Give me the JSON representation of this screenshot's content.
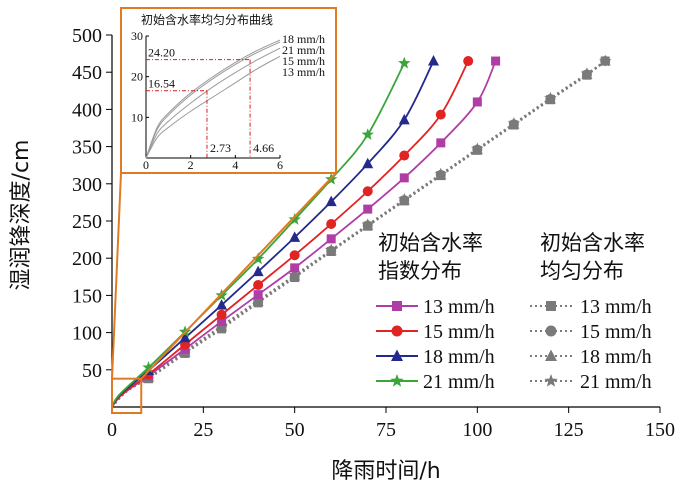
{
  "chart_data": {
    "type": "line",
    "xlabel": "降雨时间/h",
    "ylabel": "湿润锋深度/cm",
    "xlim": [
      0,
      150
    ],
    "ylim": [
      0,
      500
    ],
    "xticks": [
      0,
      25,
      50,
      75,
      100,
      125,
      150
    ],
    "yticks": [
      50,
      100,
      150,
      200,
      250,
      300,
      350,
      400,
      450,
      500
    ],
    "legend": {
      "placement": "bottom-right",
      "group_exp_line1": "初始含水率",
      "group_exp_line2": "指数分布",
      "group_uni_line1": "初始含水率",
      "group_uni_line2": "均匀分布"
    },
    "series": [
      {
        "name": "13 mm/h",
        "group": "exp",
        "color": "#b03ca6",
        "marker": "square",
        "style": "solid",
        "x": [
          2.73,
          10,
          20,
          30,
          40,
          50,
          60,
          70,
          80,
          90,
          100,
          105
        ],
        "y": [
          16.54,
          42,
          78,
          115,
          151,
          187,
          226,
          266,
          308,
          355,
          410,
          465
        ]
      },
      {
        "name": "15 mm/h",
        "group": "exp",
        "color": "#e02424",
        "marker": "circle",
        "style": "solid",
        "x": [
          2.5,
          10,
          20,
          30,
          40,
          50,
          60,
          70,
          80,
          90,
          97.5
        ],
        "y": [
          16.5,
          44,
          84,
          124,
          164,
          204,
          246,
          290,
          338,
          393,
          465
        ]
      },
      {
        "name": "18 mm/h",
        "group": "exp",
        "color": "#232a8c",
        "marker": "triangle",
        "style": "solid",
        "x": [
          2.2,
          10,
          20,
          30,
          40,
          50,
          60,
          70,
          80,
          88
        ],
        "y": [
          16.5,
          49,
          93,
          137,
          182,
          228,
          276,
          327,
          386,
          465
        ]
      },
      {
        "name": "21 mm/h",
        "group": "exp",
        "color": "#3aa63a",
        "marker": "star",
        "style": "solid",
        "x": [
          2,
          10,
          20,
          30,
          40,
          50,
          60,
          70,
          80
        ],
        "y": [
          16.5,
          53,
          101,
          150,
          199,
          252,
          306,
          366,
          462
        ]
      },
      {
        "name": "13 mm/h",
        "group": "uni",
        "color": "#7a7a7a",
        "marker": "square",
        "style": "dotted",
        "x": [
          4.66,
          10,
          20,
          30,
          40,
          50,
          60,
          70,
          80,
          90,
          100,
          110,
          120,
          130,
          135
        ],
        "y": [
          24.2,
          38,
          72,
          105,
          140,
          174,
          209,
          243,
          277,
          311,
          345,
          379,
          413,
          446,
          465
        ]
      },
      {
        "name": "15 mm/h",
        "group": "uni",
        "color": "#7a7a7a",
        "marker": "circle",
        "style": "dotted",
        "x": [
          4,
          10,
          20,
          30,
          40,
          50,
          60,
          70,
          80,
          90,
          100,
          110,
          120,
          130,
          135
        ],
        "y": [
          21,
          39,
          73,
          107,
          141,
          175,
          210,
          244,
          278,
          312,
          346,
          380,
          414,
          447,
          465
        ]
      },
      {
        "name": "18 mm/h",
        "group": "uni",
        "color": "#7a7a7a",
        "marker": "triangle",
        "style": "dotted",
        "x": [
          3.6,
          10,
          20,
          30,
          40,
          50,
          60,
          70,
          80,
          90,
          100,
          110,
          120,
          130,
          135
        ],
        "y": [
          19,
          40,
          74,
          108,
          142,
          176,
          210,
          244,
          278,
          312,
          346,
          380,
          414,
          447,
          465
        ]
      },
      {
        "name": "21 mm/h",
        "group": "uni",
        "color": "#7a7a7a",
        "marker": "star",
        "style": "dotted",
        "x": [
          3.2,
          10,
          20,
          30,
          40,
          50,
          60,
          70,
          80,
          90,
          100,
          110,
          120,
          130,
          135
        ],
        "y": [
          18,
          41,
          75,
          109,
          143,
          177,
          211,
          245,
          279,
          313,
          347,
          381,
          415,
          448,
          465
        ]
      }
    ],
    "inset": {
      "title": "初始含水率均匀分布曲线",
      "xlim": [
        0,
        6
      ],
      "ylim": [
        0,
        30
      ],
      "xticks": [
        0,
        2,
        4,
        6
      ],
      "yticks": [
        10,
        20,
        30
      ],
      "legend_labels": [
        "18 mm/h",
        "21 mm/h",
        "15 mm/h",
        "13 mm/h"
      ],
      "annotations": [
        {
          "text": "24.20",
          "x": 4.66,
          "y": 24.2
        },
        {
          "text": "16.54",
          "x": 2.73,
          "y": 16.54
        },
        {
          "text": "2.73",
          "x": 2.73,
          "y": 0
        },
        {
          "text": "4.66",
          "x": 4.66,
          "y": 0
        }
      ],
      "series": [
        {
          "name": "18 mm/h",
          "x": [
            0,
            0.5,
            1,
            2,
            3,
            4,
            5,
            6
          ],
          "y": [
            0,
            7.5,
            11,
            16,
            20,
            23.5,
            26.5,
            29
          ]
        },
        {
          "name": "21 mm/h",
          "x": [
            0,
            0.5,
            1,
            2,
            3,
            4,
            5,
            6
          ],
          "y": [
            0,
            7,
            10.5,
            15.5,
            19.5,
            23,
            26,
            28.5
          ]
        },
        {
          "name": "15 mm/h",
          "x": [
            0,
            0.5,
            1,
            2,
            3,
            4,
            5,
            6
          ],
          "y": [
            0,
            6,
            9,
            13.5,
            17.5,
            21,
            24.2,
            27
          ]
        },
        {
          "name": "13 mm/h",
          "x": [
            0,
            0.5,
            1,
            2,
            3,
            4,
            5,
            6
          ],
          "y": [
            0,
            5,
            7.5,
            11.5,
            15,
            18.5,
            22,
            25
          ]
        }
      ]
    },
    "zoom_region": {
      "x": [
        0,
        8
      ],
      "y": [
        0,
        30
      ]
    },
    "accent_color": "#e07b24"
  }
}
